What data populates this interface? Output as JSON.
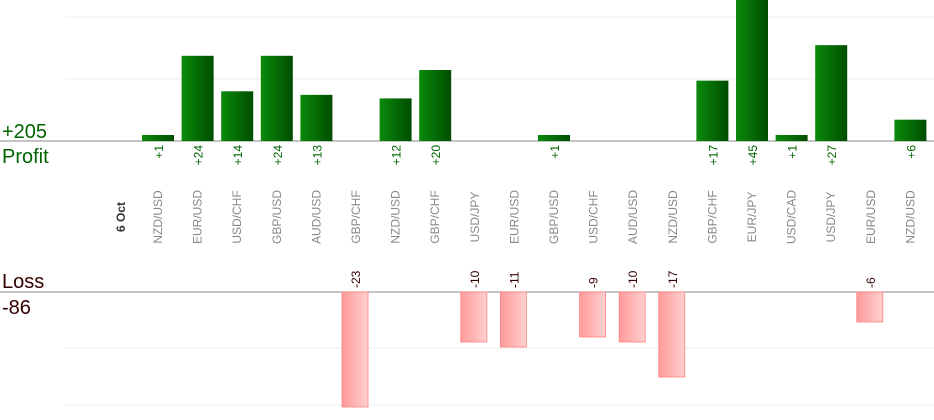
{
  "chart_data": {
    "type": "bar",
    "date_label": "6 Oct",
    "profit_label": "Profit",
    "profit_total": "+205",
    "loss_label": "Loss",
    "loss_total": "-86",
    "categories": [
      "NZD/USD",
      "EUR/USD",
      "USD/CHF",
      "GBP/USD",
      "AUD/USD",
      "GBP/CHF",
      "NZD/USD",
      "GBP/CHF",
      "USD/JPY",
      "EUR/USD",
      "GBP/USD",
      "USD/CHF",
      "AUD/USD",
      "NZD/USD",
      "GBP/CHF",
      "EUR/JPY",
      "USD/CAD",
      "USD/JPY",
      "EUR/USD",
      "NZD/USD"
    ],
    "series": [
      {
        "values": [
          1,
          24,
          14,
          24,
          13,
          null,
          12,
          20,
          null,
          null,
          1,
          null,
          null,
          null,
          17,
          45,
          1,
          27,
          null,
          6
        ],
        "labels": [
          "+1",
          "+24",
          "+14",
          "+24",
          "+13",
          "",
          "+12",
          "+20",
          "",
          "",
          "+1",
          "",
          "",
          "",
          "+17",
          "+45",
          "+1",
          "+27",
          "",
          "+6"
        ],
        "color": "#006400"
      },
      {
        "values": [
          null,
          null,
          null,
          null,
          null,
          -23,
          null,
          null,
          -10,
          -11,
          null,
          -9,
          -10,
          -17,
          null,
          null,
          null,
          null,
          -6,
          null
        ],
        "labels": [
          "",
          "",
          "",
          "",
          "",
          "-23",
          "",
          "",
          "-10",
          "-11",
          "",
          "-9",
          "-10",
          "-17",
          "",
          "",
          "",
          "",
          "-6",
          ""
        ],
        "color": "#ffb0b0"
      }
    ],
    "colors": {
      "profit": "#006400",
      "loss": "#ffb6b6",
      "profit_text": "#006400",
      "loss_text": "#330000",
      "category_text": "#888888"
    }
  }
}
